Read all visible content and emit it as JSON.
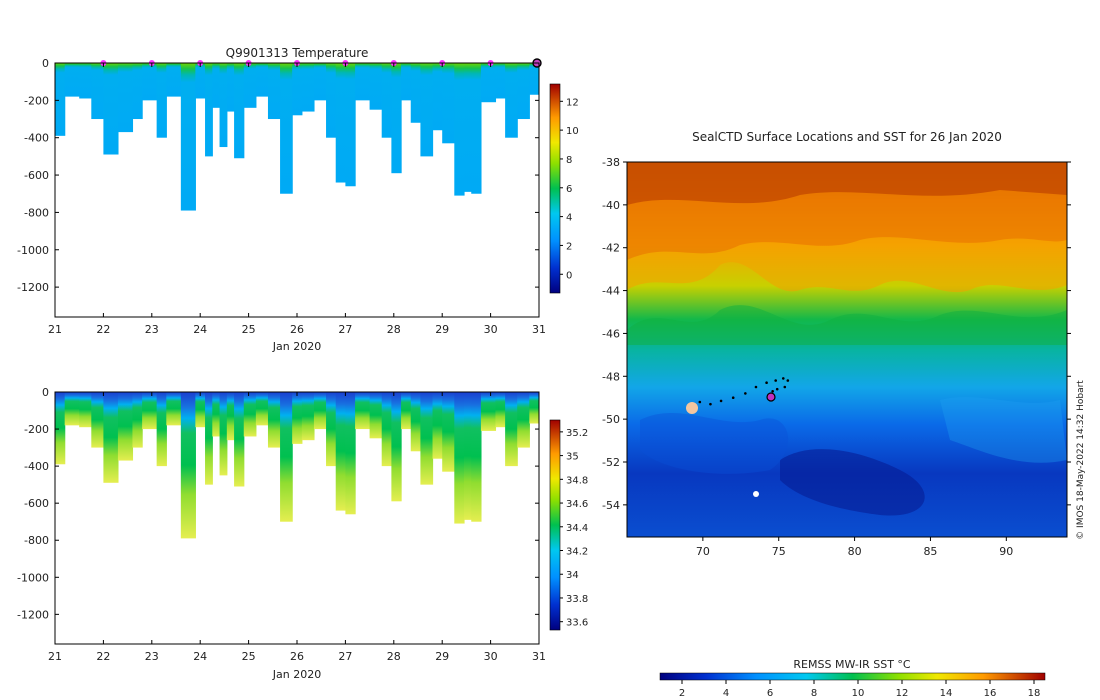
{
  "chart_data": [
    {
      "id": "temperature",
      "type": "heatmap",
      "title": "Q9901313  Temperature",
      "xlabel": "Jan 2020",
      "ylabel": "",
      "xlim": [
        21,
        31
      ],
      "ylim": [
        -1360,
        0
      ],
      "x_ticks": [
        "21",
        "22",
        "23",
        "24",
        "25",
        "26",
        "27",
        "28",
        "29",
        "30",
        "31"
      ],
      "y_ticks": [
        "0",
        "-200",
        "-400",
        "-600",
        "-800",
        "-1000",
        "-1200"
      ],
      "colorbar": {
        "min": -1.3,
        "max": 13.2,
        "ticks": [
          "0",
          "2",
          "4",
          "6",
          "8",
          "10",
          "12"
        ]
      },
      "profile_days": [
        21.0,
        21.2,
        21.5,
        21.75,
        22.0,
        22.3,
        22.6,
        22.8,
        23.1,
        23.3,
        23.6,
        23.9,
        24.1,
        24.25,
        24.4,
        24.55,
        24.7,
        24.9,
        25.15,
        25.4,
        25.65,
        25.9,
        26.1,
        26.35,
        26.6,
        26.8,
        27.0,
        27.2,
        27.5,
        27.75,
        27.95,
        28.15,
        28.35,
        28.55,
        28.8,
        29.0,
        29.25,
        29.45,
        29.6,
        29.8,
        30.1,
        30.3,
        30.55,
        30.8,
        31.0
      ],
      "max_depths": [
        -390,
        -180,
        -190,
        -300,
        -490,
        -370,
        -300,
        -200,
        -400,
        -180,
        -790,
        -190,
        -500,
        -240,
        -450,
        -260,
        -510,
        -240,
        -180,
        -300,
        -700,
        -280,
        -260,
        -200,
        -400,
        -640,
        -660,
        -200,
        -250,
        -400,
        -590,
        -200,
        -320,
        -500,
        -360,
        -430,
        -710,
        -690,
        -700,
        -210,
        -190,
        -400,
        -300,
        -170,
        -200
      ],
      "surface_markers_days": [
        22,
        23,
        24,
        25,
        26,
        27,
        28,
        29,
        30
      ],
      "current_marker_day": 31
    },
    {
      "id": "salinity",
      "type": "heatmap",
      "title": "",
      "xlabel": "Jan 2020",
      "ylabel": "",
      "xlim": [
        21,
        31
      ],
      "ylim": [
        -1360,
        0
      ],
      "x_ticks": [
        "21",
        "22",
        "23",
        "24",
        "25",
        "26",
        "27",
        "28",
        "29",
        "30",
        "31"
      ],
      "y_ticks": [
        "0",
        "-200",
        "-400",
        "-600",
        "-800",
        "-1000",
        "-1200"
      ],
      "colorbar": {
        "min": 33.53,
        "max": 35.3,
        "ticks": [
          "33.6",
          "33.8",
          "34",
          "34.2",
          "34.4",
          "34.6",
          "34.8",
          "35",
          "35.2"
        ]
      },
      "max_depths": [
        -390,
        -180,
        -190,
        -300,
        -490,
        -370,
        -300,
        -200,
        -400,
        -180,
        -790,
        -190,
        -500,
        -240,
        -450,
        -260,
        -510,
        -240,
        -180,
        -300,
        -700,
        -280,
        -260,
        -200,
        -400,
        -640,
        -660,
        -200,
        -250,
        -400,
        -590,
        -200,
        -320,
        -500,
        -360,
        -430,
        -710,
        -690,
        -700,
        -210,
        -190,
        -400,
        -300,
        -170,
        -200
      ]
    },
    {
      "id": "sst_map",
      "type": "heatmap",
      "title": "SealCTD Surface Locations and SST for 26 Jan 2020",
      "xlabel": "",
      "ylabel": "",
      "xlim": [
        65,
        94
      ],
      "ylim": [
        -55.5,
        -38
      ],
      "x_ticks": [
        "70",
        "75",
        "80",
        "85",
        "90"
      ],
      "y_ticks": [
        "-38",
        "-40",
        "-42",
        "-44",
        "-46",
        "-48",
        "-50",
        "-52",
        "-54"
      ],
      "colorbar": {
        "label": "REMSS MW-IR SST °C",
        "min": 1,
        "max": 18.5,
        "ticks": [
          "2",
          "4",
          "6",
          "8",
          "10",
          "12",
          "14",
          "16",
          "18"
        ]
      },
      "track": {
        "lon": [
          69.8,
          70.5,
          71.2,
          72.0,
          72.8,
          73.5,
          74.2,
          74.8,
          75.3,
          75.6,
          75.4,
          74.9,
          74.6
        ],
        "lat": [
          -49.2,
          -49.3,
          -49.15,
          -49.0,
          -48.8,
          -48.5,
          -48.3,
          -48.2,
          -48.1,
          -48.2,
          -48.5,
          -48.6,
          -48.7
        ]
      },
      "current_position": {
        "lon": 74.6,
        "lat": -48.7
      },
      "credit": "© IMOS 18-May-2022 14:32 Hobart"
    }
  ]
}
